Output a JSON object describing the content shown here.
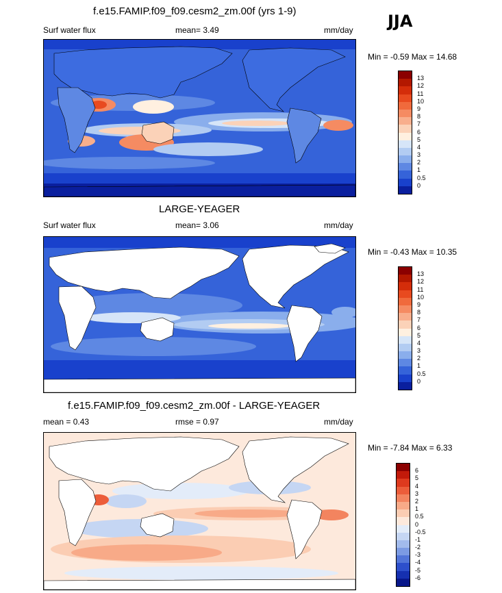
{
  "season": "JJA",
  "panels": [
    {
      "title": "f.e15.FAMIP.f09_f09.cesm2_zm.00f (yrs 1-9)",
      "left_label": "Surf water flux",
      "mid_label": "mean=   3.49",
      "units": "mm/day",
      "minmax": "Min =  -0.59 Max =  14.68",
      "colorbar": {
        "labels": [
          "13",
          "12",
          "11",
          "10",
          "9",
          "8",
          "7",
          "6",
          "5",
          "4",
          "3",
          "2",
          "1",
          "0.5",
          "0"
        ],
        "colors": [
          "#8b0000",
          "#b31800",
          "#d42d0a",
          "#e84a1f",
          "#f06a3c",
          "#f58b62",
          "#f8ae8c",
          "#fbd2b8",
          "#fff0e0",
          "#d6e5f8",
          "#b2ccf2",
          "#8aaeec",
          "#5e88e3",
          "#3563d9",
          "#1941cc",
          "#0a1f9e"
        ]
      }
    },
    {
      "title": "LARGE-YEAGER",
      "left_label": "Surf water flux",
      "mid_label": "mean=   3.06",
      "units": "mm/day",
      "minmax": "Min =  -0.43 Max =  10.35",
      "colorbar": {
        "labels": [
          "13",
          "12",
          "11",
          "10",
          "9",
          "8",
          "7",
          "6",
          "5",
          "4",
          "3",
          "2",
          "1",
          "0.5",
          "0"
        ],
        "colors": [
          "#8b0000",
          "#b31800",
          "#d42d0a",
          "#e84a1f",
          "#f06a3c",
          "#f58b62",
          "#f8ae8c",
          "#fbd2b8",
          "#fff0e0",
          "#d6e5f8",
          "#b2ccf2",
          "#8aaeec",
          "#5e88e3",
          "#3563d9",
          "#1941cc",
          "#0a1f9e"
        ]
      }
    },
    {
      "title": "f.e15.FAMIP.f09_f09.cesm2_zm.00f - LARGE-YEAGER",
      "left_label": "mean =   0.43",
      "mid_label": "rmse =   0.97",
      "units": "mm/day",
      "minmax": "Min =  -7.84 Max =   6.33",
      "colorbar": {
        "labels": [
          "6",
          "5",
          "4",
          "3",
          "2",
          "1",
          "0.5",
          "0",
          "-0.5",
          "-1",
          "-2",
          "-3",
          "-4",
          "-5",
          "-6"
        ],
        "colors": [
          "#8b0000",
          "#c21a0a",
          "#de3a1e",
          "#ec5d3a",
          "#f3845f",
          "#f8aa88",
          "#fbcdb3",
          "#fde9dc",
          "#e3ecf9",
          "#c5d6f3",
          "#a2bbec",
          "#7c9be3",
          "#5275d8",
          "#2d4fcb",
          "#1530b0",
          "#08178a"
        ]
      }
    }
  ]
}
